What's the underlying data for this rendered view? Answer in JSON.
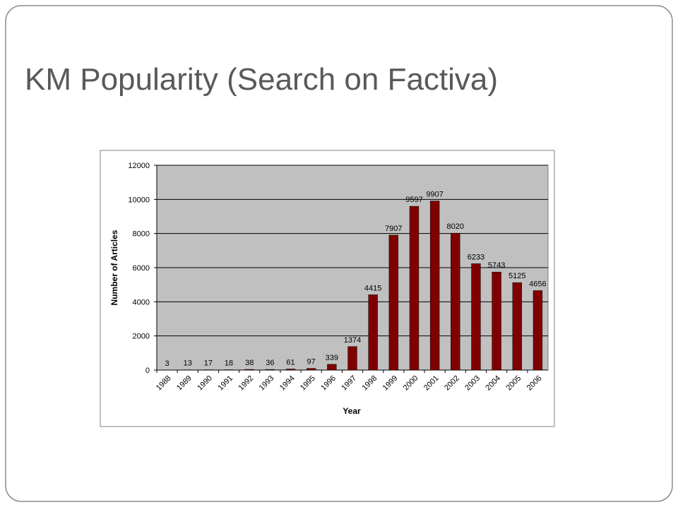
{
  "slide_title": "KM Popularity (Search on Factiva)",
  "chart_data": {
    "type": "bar",
    "categories": [
      "1988",
      "1989",
      "1990",
      "1991",
      "1992",
      "1993",
      "1994",
      "1995",
      "1996",
      "1997",
      "1998",
      "1999",
      "2000",
      "2001",
      "2002",
      "2003",
      "2004",
      "2005",
      "2006"
    ],
    "values": [
      3,
      13,
      17,
      18,
      38,
      36,
      61,
      97,
      339,
      1374,
      4415,
      7907,
      9597,
      9907,
      8020,
      6233,
      5743,
      5125,
      4656
    ],
    "color": "#800000",
    "x_label": "Year",
    "y_label": "Number of Articles",
    "ylim": [
      0,
      12000
    ],
    "yticks": [
      0,
      2000,
      4000,
      6000,
      8000,
      10000,
      12000
    ],
    "grid": true
  }
}
